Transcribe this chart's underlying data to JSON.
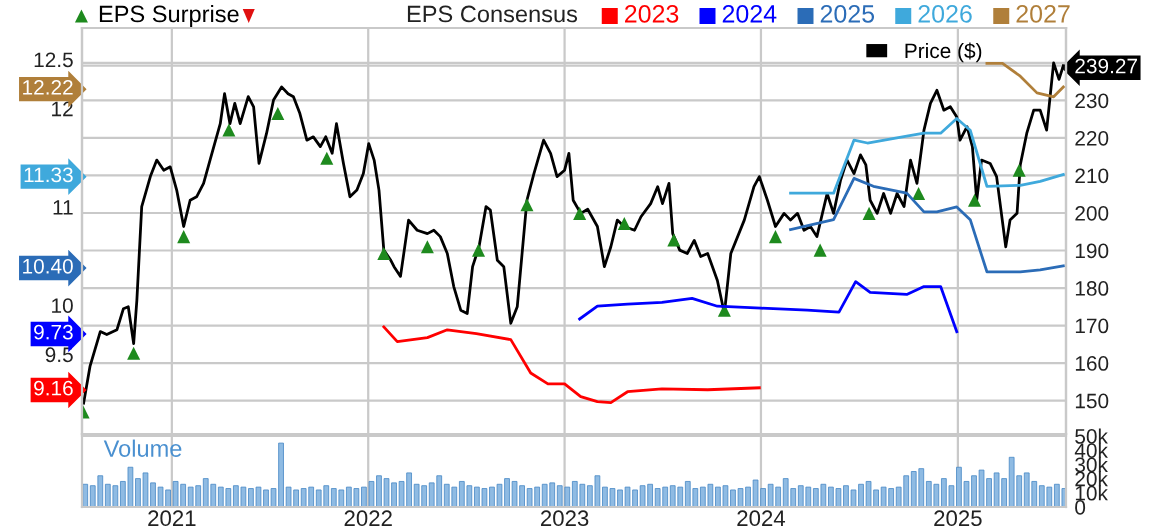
{
  "chart_data": [
    {
      "type": "line",
      "legend": "top",
      "legend_title": "EPS Consensus",
      "grid": true,
      "tick_labels": "y",
      "xlim": [
        "2020-07-18",
        "2025-07-21"
      ],
      "xticks": [
        {
          "value": "2021-01-01",
          "label": null
        },
        {
          "value": "2022-01-01",
          "label": null
        },
        {
          "value": "2023-01-01",
          "label": null
        },
        {
          "value": "2024-01-01",
          "label": null
        },
        {
          "value": "2025-01-01",
          "label": null
        }
      ],
      "ylim": [
        8.69,
        12.82
      ],
      "yticks": [
        9.5,
        10,
        11,
        12,
        12.5,
        9.16,
        9.73,
        {
          "value": 10.4,
          "label": "10.40"
        },
        11.33,
        12.22
      ],
      "y2lim": [
        141.1,
        249.3
      ],
      "y2ticks": [
        150,
        160,
        170,
        180,
        190,
        200,
        210,
        220,
        230,
        {
          "value": 240,
          "label": null
        },
        239.27
      ],
      "series": [
        {
          "name": "2023",
          "color": "#ff0000",
          "x": [
            "2022-01-30",
            "2022-02-24",
            "2022-04-21",
            "2022-05-28",
            "2022-07-21",
            "2022-09-23",
            "2022-10-30",
            "2022-12-01",
            "2023-01-01",
            "2023-01-31",
            "2023-03-03",
            "2023-03-28",
            "2023-04-28",
            "2023-07-01",
            "2023-09-24",
            "2023-12-29"
          ],
          "values": [
            9.78,
            9.63,
            9.67,
            9.75,
            9.71,
            9.65,
            9.31,
            9.2,
            9.2,
            9.07,
            9.02,
            9.01,
            9.12,
            9.15,
            9.14,
            9.16
          ]
        },
        {
          "name": "2024",
          "color": "#0000ff",
          "x": [
            "2023-01-29",
            "2023-03-03",
            "2023-04-28",
            "2023-07-01",
            "2023-08-26",
            "2023-10-12",
            "2024-01-01",
            "2024-03-27",
            "2024-05-25",
            "2024-06-25",
            "2024-07-22",
            "2024-09-28",
            "2024-10-30",
            "2024-11-30",
            "2024-12-30"
          ],
          "values": [
            9.86,
            9.99,
            10.01,
            10.03,
            10.07,
            9.99,
            9.97,
            9.95,
            9.93,
            10.24,
            10.13,
            10.11,
            10.19,
            10.19,
            9.73
          ]
        },
        {
          "name": "2025",
          "color": "#2b6cb7",
          "x": [
            "2024-02-25",
            "2024-05-15",
            "2024-06-22",
            "2024-07-28",
            "2024-09-28",
            "2024-10-30",
            "2024-11-23",
            "2024-12-30",
            "2025-01-24",
            "2025-02-24",
            "2025-04-27",
            "2025-06-03",
            "2025-07-16"
          ],
          "values": [
            10.77,
            10.87,
            11.29,
            11.21,
            11.14,
            10.95,
            10.95,
            11.0,
            10.87,
            10.34,
            10.34,
            10.36,
            10.4
          ]
        },
        {
          "name": "2026",
          "color": "#3fa9dc",
          "x": [
            "2024-02-25",
            "2024-05-15",
            "2024-06-22",
            "2024-07-17",
            "2024-09-28",
            "2024-10-30",
            "2024-11-30",
            "2024-12-30",
            "2025-01-24",
            "2025-02-24",
            "2025-04-27",
            "2025-06-03",
            "2025-07-16"
          ],
          "values": [
            11.14,
            11.14,
            11.68,
            11.65,
            11.72,
            11.75,
            11.75,
            11.9,
            11.78,
            11.21,
            11.22,
            11.26,
            11.33
          ]
        },
        {
          "name": "2027",
          "color": "#b07f3a",
          "x": [
            "2025-02-24",
            "2025-03-25",
            "2025-04-27",
            "2025-05-28",
            "2025-06-28",
            "2025-07-16"
          ],
          "values": [
            12.46,
            12.46,
            12.33,
            12.16,
            12.12,
            12.22
          ]
        },
        {
          "name": "Price ($)",
          "color": "#000000",
          "axis": "y2",
          "x": [
            "2020-07-21",
            "2020-08-02",
            "2020-08-21",
            "2020-09-02",
            "2020-09-21",
            "2020-10-03",
            "2020-10-12",
            "2020-10-22",
            "2020-10-28",
            "2020-11-06",
            "2020-11-22",
            "2020-12-04",
            "2020-12-17",
            "2020-12-29",
            "2021-01-10",
            "2021-01-23",
            "2021-02-04",
            "2021-02-16",
            "2021-03-01",
            "2021-03-13",
            "2021-04-01",
            "2021-04-09",
            "2021-04-19",
            "2021-04-28",
            "2021-05-08",
            "2021-05-23",
            "2021-06-02",
            "2021-06-12",
            "2021-06-26",
            "2021-07-09",
            "2021-07-24",
            "2021-08-05",
            "2021-08-15",
            "2021-08-27",
            "2021-09-09",
            "2021-09-21",
            "2021-10-04",
            "2021-10-14",
            "2021-10-26",
            "2021-11-03",
            "2021-11-16",
            "2021-11-28",
            "2021-12-11",
            "2021-12-23",
            "2022-01-02",
            "2022-01-12",
            "2022-01-21",
            "2022-01-30",
            "2022-02-12",
            "2022-02-18",
            "2022-03-02",
            "2022-03-17",
            "2022-04-02",
            "2022-04-21",
            "2022-05-03",
            "2022-05-15",
            "2022-05-28",
            "2022-06-09",
            "2022-06-22",
            "2022-07-04",
            "2022-07-14",
            "2022-07-26",
            "2022-08-08",
            "2022-08-16",
            "2022-08-29",
            "2022-09-10",
            "2022-09-23",
            "2022-10-05",
            "2022-10-23",
            "2022-11-05",
            "2022-11-23",
            "2022-12-06",
            "2022-12-18",
            "2023-01-01",
            "2023-01-09",
            "2023-01-17",
            "2023-01-31",
            "2023-02-13",
            "2023-03-03",
            "2023-03-16",
            "2023-03-28",
            "2023-04-09",
            "2023-04-22",
            "2023-05-11",
            "2023-05-23",
            "2023-06-10",
            "2023-06-23",
            "2023-07-02",
            "2023-07-14",
            "2023-07-21",
            "2023-08-03",
            "2023-08-17",
            "2023-08-30",
            "2023-09-11",
            "2023-09-24",
            "2023-10-12",
            "2023-10-25",
            "2023-11-06",
            "2023-12-01",
            "2023-12-19",
            "2023-12-29",
            "2024-01-13",
            "2024-01-28",
            "2024-02-13",
            "2024-02-25",
            "2024-03-09",
            "2024-03-21",
            "2024-04-02",
            "2024-04-14",
            "2024-05-03",
            "2024-05-15",
            "2024-05-28",
            "2024-06-09",
            "2024-06-22",
            "2024-07-04",
            "2024-07-14",
            "2024-07-22",
            "2024-08-04",
            "2024-08-16",
            "2024-08-29",
            "2024-09-10",
            "2024-09-23",
            "2024-10-05",
            "2024-10-17",
            "2024-10-30",
            "2024-11-11",
            "2024-11-23",
            "2024-12-06",
            "2024-12-18",
            "2024-12-30",
            "2025-01-05",
            "2025-01-18",
            "2025-01-28",
            "2025-02-05",
            "2025-02-14",
            "2025-03-02",
            "2025-03-14",
            "2025-03-31",
            "2025-04-08",
            "2025-04-21",
            "2025-04-27",
            "2025-05-09",
            "2025-05-22",
            "2025-06-03",
            "2025-06-15",
            "2025-06-28",
            "2025-07-08",
            "2025-07-16"
          ],
          "values": [
            149.3,
            159.2,
            168.4,
            167.6,
            168.9,
            174.5,
            175.0,
            165.2,
            176.8,
            201.7,
            209.7,
            214.1,
            211.4,
            212.3,
            206.1,
            196.4,
            203.4,
            204.3,
            207.9,
            214.1,
            223.8,
            231.8,
            223.8,
            229.2,
            223.8,
            231.0,
            228.3,
            213.2,
            221.2,
            230.1,
            233.6,
            231.8,
            231.0,
            226.5,
            219.4,
            220.3,
            217.7,
            220.3,
            215.9,
            223.8,
            213.2,
            204.3,
            206.1,
            210.5,
            218.5,
            214.1,
            206.1,
            190.1,
            187.4,
            185.7,
            183.1,
            198.1,
            195.4,
            194.5,
            195.4,
            193.7,
            189.2,
            180.4,
            174.1,
            173.2,
            185.7,
            191.0,
            201.7,
            200.8,
            187.4,
            185.7,
            170.6,
            175.0,
            203.4,
            210.5,
            219.4,
            215.9,
            209.7,
            211.4,
            215.9,
            203.4,
            199.9,
            201.0,
            196.4,
            185.7,
            191.0,
            198.1,
            196.4,
            195.4,
            199.0,
            202.5,
            207.0,
            202.5,
            207.9,
            194.5,
            190.1,
            189.2,
            192.7,
            188.4,
            189.2,
            182.0,
            173.2,
            189.2,
            198.1,
            207.0,
            209.7,
            203.4,
            196.4,
            199.9,
            198.1,
            199.9,
            195.4,
            196.4,
            193.7,
            205.2,
            199.9,
            208.8,
            214.1,
            210.5,
            215.5,
            212.8,
            203.4,
            199.9,
            205.2,
            199.9,
            205.2,
            201.7,
            214.1,
            207.9,
            222.1,
            229.2,
            232.7,
            227.4,
            228.3,
            225.6,
            219.4,
            223.0,
            217.7,
            203.4,
            214.1,
            213.2,
            209.7,
            191.0,
            198.1,
            199.9,
            212.8,
            221.2,
            227.4,
            227.4,
            222.1,
            240.0,
            235.6,
            239.27
          ]
        },
        {
          "name": "EPS Surprise",
          "type": "scatter",
          "marker": "triangle",
          "color": "#1e8a1e",
          "axis": "y2",
          "x": [
            "2020-07-20",
            "2020-10-22",
            "2021-01-23",
            "2021-04-17",
            "2021-07-17",
            "2021-10-16",
            "2022-01-30",
            "2022-04-21",
            "2022-07-25",
            "2022-10-23",
            "2023-01-29",
            "2023-04-22",
            "2023-07-23",
            "2023-10-25",
            "2024-01-28",
            "2024-04-20",
            "2024-07-20",
            "2024-10-20",
            "2025-02-01",
            "2025-04-25"
          ],
          "values": [
            147.0,
            162.6,
            193.7,
            222.1,
            226.5,
            214.6,
            189.2,
            191.0,
            190.1,
            202.2,
            199.9,
            197.2,
            192.8,
            174.1,
            193.7,
            190.1,
            199.9,
            205.2,
            203.4,
            211.4
          ]
        }
      ]
    },
    {
      "type": "bar",
      "title": "Volume",
      "grid": "x",
      "color": "#8fbbe3",
      "xlim": [
        "2020-07-18",
        "2025-07-21"
      ],
      "xticks": [
        {
          "value": "2021-01-01",
          "label": "2021"
        },
        {
          "value": "2022-01-01",
          "label": "2022"
        },
        {
          "value": "2023-01-01",
          "label": "2023"
        },
        {
          "value": "2024-01-01",
          "label": "2024"
        },
        {
          "value": "2025-01-01",
          "label": "2025"
        }
      ],
      "ylim": [
        0,
        50000
      ],
      "yticks": [
        0,
        {
          "value": 10000,
          "label": "10k"
        },
        {
          "value": 20000,
          "label": "20k"
        },
        {
          "value": 30000,
          "label": "30k"
        },
        {
          "value": 40000,
          "label": "40k"
        },
        {
          "value": 50000,
          "label": "50k"
        }
      ],
      "x": [
        "2020-07-24",
        "2020-08-07",
        "2020-08-21",
        "2020-09-04",
        "2020-09-18",
        "2020-10-02",
        "2020-10-16",
        "2020-10-30",
        "2020-11-13",
        "2020-11-27",
        "2020-12-11",
        "2020-12-25",
        "2021-01-08",
        "2021-01-22",
        "2021-02-05",
        "2021-02-19",
        "2021-03-05",
        "2021-03-19",
        "2021-04-02",
        "2021-04-16",
        "2021-04-30",
        "2021-05-14",
        "2021-05-28",
        "2021-06-11",
        "2021-06-25",
        "2021-07-09",
        "2021-07-23",
        "2021-08-06",
        "2021-08-20",
        "2021-09-03",
        "2021-09-17",
        "2021-10-01",
        "2021-10-15",
        "2021-10-29",
        "2021-11-12",
        "2021-11-26",
        "2021-12-10",
        "2021-12-24",
        "2022-01-07",
        "2022-01-21",
        "2022-02-04",
        "2022-02-18",
        "2022-03-04",
        "2022-03-18",
        "2022-04-01",
        "2022-04-15",
        "2022-04-29",
        "2022-05-13",
        "2022-05-27",
        "2022-06-10",
        "2022-06-24",
        "2022-07-08",
        "2022-07-22",
        "2022-08-05",
        "2022-08-19",
        "2022-09-02",
        "2022-09-16",
        "2022-09-30",
        "2022-10-14",
        "2022-10-28",
        "2022-11-11",
        "2022-11-25",
        "2022-12-09",
        "2022-12-23",
        "2023-01-06",
        "2023-01-20",
        "2023-02-03",
        "2023-02-17",
        "2023-03-03",
        "2023-03-17",
        "2023-03-31",
        "2023-04-14",
        "2023-04-28",
        "2023-05-12",
        "2023-05-26",
        "2023-06-09",
        "2023-06-23",
        "2023-07-07",
        "2023-07-21",
        "2023-08-04",
        "2023-08-18",
        "2023-09-01",
        "2023-09-15",
        "2023-09-29",
        "2023-10-13",
        "2023-10-27",
        "2023-11-10",
        "2023-11-24",
        "2023-12-08",
        "2023-12-22",
        "2024-01-05",
        "2024-01-19",
        "2024-02-02",
        "2024-02-16",
        "2024-03-01",
        "2024-03-15",
        "2024-03-29",
        "2024-04-12",
        "2024-04-26",
        "2024-05-10",
        "2024-05-24",
        "2024-06-07",
        "2024-06-21",
        "2024-07-05",
        "2024-07-19",
        "2024-08-02",
        "2024-08-16",
        "2024-08-30",
        "2024-09-13",
        "2024-09-27",
        "2024-10-11",
        "2024-10-25",
        "2024-11-08",
        "2024-11-22",
        "2024-12-06",
        "2024-12-20",
        "2025-01-03",
        "2025-01-17",
        "2025-01-31",
        "2025-02-14",
        "2025-02-28",
        "2025-03-14",
        "2025-03-28",
        "2025-04-11",
        "2025-04-25",
        "2025-05-09",
        "2025-05-23",
        "2025-06-06",
        "2025-06-20",
        "2025-07-04",
        "2025-07-18"
      ],
      "values": [
        16000,
        15000,
        22000,
        16000,
        15000,
        18000,
        28000,
        20000,
        24000,
        17000,
        14000,
        12000,
        18000,
        16000,
        14000,
        15000,
        20000,
        16000,
        14000,
        13000,
        15000,
        14000,
        13000,
        14000,
        12000,
        13000,
        45000,
        14000,
        12000,
        13000,
        14000,
        12000,
        15000,
        13000,
        12000,
        14000,
        13000,
        14000,
        18000,
        22000,
        20000,
        17000,
        18000,
        24000,
        16000,
        15000,
        17000,
        22000,
        16000,
        14000,
        18000,
        15000,
        14000,
        13000,
        14000,
        16000,
        20000,
        18000,
        15000,
        13000,
        14000,
        16000,
        17000,
        15000,
        14000,
        18000,
        16000,
        15000,
        22000,
        14000,
        13000,
        12000,
        14000,
        12000,
        15000,
        16000,
        13000,
        14000,
        15000,
        14000,
        18000,
        13000,
        14000,
        16000,
        14000,
        15000,
        12000,
        13000,
        14000,
        19000,
        13000,
        16000,
        14000,
        20000,
        13000,
        15000,
        14000,
        13000,
        16000,
        14000,
        13000,
        15000,
        12000,
        16000,
        18000,
        12000,
        14000,
        13000,
        14000,
        22000,
        25000,
        27000,
        18000,
        16000,
        20000,
        15000,
        28000,
        18000,
        22000,
        26000,
        20000,
        24000,
        20000,
        35000,
        22000,
        24000,
        18000,
        15000,
        14000,
        16000,
        13000
      ]
    }
  ]
}
